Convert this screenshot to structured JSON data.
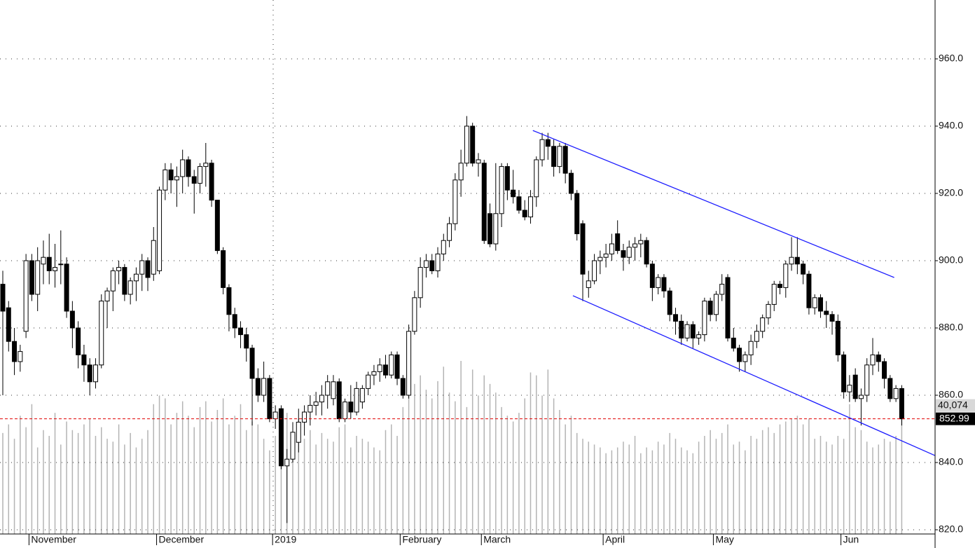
{
  "chart_data": {
    "type": "candlestick",
    "ylim": [
      818.75,
      977.5
    ],
    "yticks": [
      {
        "value": 820,
        "label": "820.0"
      },
      {
        "value": 840,
        "label": "840.0"
      },
      {
        "value": 860,
        "label": "860.0"
      },
      {
        "value": 880,
        "label": "880.0"
      },
      {
        "value": 900,
        "label": "900.0"
      },
      {
        "value": 920,
        "label": "920.0"
      },
      {
        "value": 940,
        "label": "940.0"
      },
      {
        "value": 960,
        "label": "960.0"
      }
    ],
    "grid": true,
    "up_color": "#ffffff",
    "down_color": "#000000",
    "categories": [
      null,
      null,
      null,
      null,
      null,
      "November",
      null,
      null,
      null,
      null,
      null,
      null,
      null,
      null,
      null,
      null,
      null,
      null,
      null,
      null,
      null,
      null,
      null,
      null,
      null,
      null,
      null,
      "December",
      null,
      null,
      null,
      null,
      null,
      null,
      null,
      null,
      null,
      null,
      null,
      null,
      null,
      null,
      null,
      null,
      null,
      null,
      null,
      "2019",
      null,
      null,
      null,
      null,
      null,
      null,
      null,
      null,
      null,
      null,
      null,
      null,
      null,
      null,
      null,
      null,
      null,
      null,
      null,
      null,
      null,
      "February",
      null,
      null,
      null,
      null,
      null,
      null,
      null,
      null,
      null,
      null,
      null,
      null,
      null,
      "March",
      null,
      null,
      null,
      null,
      null,
      null,
      null,
      null,
      null,
      null,
      null,
      null,
      null,
      null,
      null,
      null,
      null,
      null,
      null,
      null,
      "April",
      null,
      null,
      null,
      null,
      null,
      null,
      null,
      null,
      null,
      null,
      null,
      null,
      null,
      null,
      null,
      null,
      null,
      null,
      "May",
      null,
      null,
      null,
      null,
      null,
      null,
      null,
      null,
      null,
      null,
      null,
      null,
      null,
      null,
      null,
      null,
      null,
      null,
      null,
      null,
      null,
      "Jun",
      null,
      null,
      null,
      null,
      null,
      null,
      null,
      null,
      null,
      null
    ],
    "ohlc": [
      [
        893,
        897,
        860,
        885
      ],
      [
        886,
        888,
        873,
        876
      ],
      [
        876,
        880,
        866,
        870
      ],
      [
        870,
        875,
        867,
        873
      ],
      [
        879,
        902,
        877,
        900
      ],
      [
        900,
        902,
        888,
        890
      ],
      [
        890,
        904,
        885,
        900
      ],
      [
        899,
        906,
        893,
        901
      ],
      [
        901,
        908,
        893,
        897
      ],
      [
        897,
        905,
        892,
        898
      ],
      [
        899,
        909,
        893,
        899
      ],
      [
        899,
        901,
        883,
        885
      ],
      [
        885,
        888,
        874,
        880
      ],
      [
        880,
        882,
        868,
        872
      ],
      [
        872,
        875,
        864,
        869
      ],
      [
        869,
        871,
        860,
        864
      ],
      [
        864,
        871,
        862,
        869
      ],
      [
        869,
        890,
        868,
        888
      ],
      [
        888,
        892,
        880,
        891
      ],
      [
        891,
        898,
        885,
        897
      ],
      [
        897,
        900,
        893,
        898
      ],
      [
        898,
        899,
        888,
        890
      ],
      [
        890,
        895,
        887,
        894
      ],
      [
        894,
        898,
        888,
        896
      ],
      [
        896,
        902,
        891,
        900
      ],
      [
        900,
        901,
        891,
        895
      ],
      [
        896,
        910,
        894,
        906
      ],
      [
        897,
        922,
        896,
        921
      ],
      [
        921,
        929,
        918,
        927
      ],
      [
        927,
        929,
        920,
        924
      ],
      [
        924,
        928,
        916,
        925
      ],
      [
        925,
        933,
        920,
        930
      ],
      [
        930,
        931,
        922,
        925
      ],
      [
        925,
        927,
        914,
        923
      ],
      [
        923,
        929,
        920,
        928
      ],
      [
        928,
        935,
        922,
        929
      ],
      [
        929,
        930,
        916,
        918
      ],
      [
        918,
        918,
        902,
        903
      ],
      [
        903,
        904,
        890,
        892
      ],
      [
        892,
        893,
        879,
        884
      ],
      [
        884,
        886,
        877,
        880
      ],
      [
        880,
        882,
        874,
        878
      ],
      [
        878,
        880,
        870,
        874
      ],
      [
        874,
        875,
        851,
        865
      ],
      [
        865,
        868,
        858,
        860
      ],
      [
        860,
        870,
        858,
        865
      ],
      [
        865,
        866,
        852,
        853
      ],
      [
        853,
        857,
        850,
        855
      ],
      [
        856,
        857,
        838,
        839
      ],
      [
        839,
        844,
        822,
        841
      ],
      [
        841,
        852,
        840,
        849
      ],
      [
        846,
        856,
        843,
        852
      ],
      [
        852,
        857,
        848,
        855
      ],
      [
        855,
        860,
        851,
        857
      ],
      [
        857,
        861,
        854,
        858
      ],
      [
        858,
        863,
        854,
        860
      ],
      [
        860,
        866,
        856,
        864
      ],
      [
        859,
        866,
        857,
        864
      ],
      [
        864,
        865,
        852,
        853
      ],
      [
        853,
        859,
        852,
        858
      ],
      [
        858,
        863,
        853,
        855
      ],
      [
        855,
        864,
        854,
        862
      ],
      [
        858,
        863,
        856,
        862
      ],
      [
        862,
        867,
        860,
        866
      ],
      [
        866,
        869,
        863,
        867
      ],
      [
        867,
        871,
        864,
        869
      ],
      [
        869,
        872,
        865,
        866
      ],
      [
        866,
        873,
        865,
        872
      ],
      [
        872,
        873,
        863,
        865
      ],
      [
        865,
        866,
        859,
        860
      ],
      [
        860,
        881,
        859,
        879
      ],
      [
        879,
        891,
        878,
        889
      ],
      [
        889,
        901,
        886,
        898
      ],
      [
        898,
        902,
        895,
        900
      ],
      [
        900,
        902,
        896,
        897
      ],
      [
        897,
        904,
        895,
        902
      ],
      [
        902,
        908,
        900,
        906
      ],
      [
        906,
        913,
        904,
        911
      ],
      [
        911,
        926,
        909,
        924
      ],
      [
        924,
        933,
        919,
        929
      ],
      [
        929,
        943,
        928,
        940
      ],
      [
        940,
        941,
        928,
        929
      ],
      [
        929,
        932,
        925,
        930
      ],
      [
        929,
        930,
        905,
        906
      ],
      [
        914,
        917,
        904,
        905
      ],
      [
        905,
        929,
        903,
        914
      ],
      [
        914,
        929,
        910,
        928
      ],
      [
        928,
        929,
        918,
        921
      ],
      [
        921,
        927,
        917,
        919
      ],
      [
        919,
        921,
        914,
        915
      ],
      [
        915,
        918,
        912,
        913
      ],
      [
        913,
        921,
        911,
        919
      ],
      [
        919,
        931,
        916,
        930
      ],
      [
        930,
        938,
        928,
        936
      ],
      [
        936,
        938,
        930,
        934
      ],
      [
        934,
        936,
        925,
        928
      ],
      [
        928,
        935,
        926,
        934
      ],
      [
        934,
        935,
        923,
        926
      ],
      [
        926,
        927,
        918,
        920
      ],
      [
        920,
        921,
        906,
        908
      ],
      [
        911,
        912,
        888,
        896
      ],
      [
        892,
        897,
        889,
        894
      ],
      [
        894,
        902,
        893,
        900
      ],
      [
        900,
        903,
        896,
        901
      ],
      [
        901,
        905,
        898,
        902
      ],
      [
        902,
        908,
        900,
        905
      ],
      [
        908,
        912,
        902,
        903
      ],
      [
        903,
        905,
        897,
        901
      ],
      [
        901,
        906,
        899,
        904
      ],
      [
        904,
        907,
        900,
        905
      ],
      [
        905,
        908,
        901,
        906
      ],
      [
        906,
        907,
        898,
        899
      ],
      [
        899,
        900,
        888,
        892
      ],
      [
        892,
        896,
        890,
        895
      ],
      [
        895,
        896,
        889,
        891
      ],
      [
        891,
        892,
        882,
        884
      ],
      [
        884,
        886,
        878,
        882
      ],
      [
        882,
        884,
        875,
        877
      ],
      [
        877,
        882,
        876,
        881
      ],
      [
        881,
        882,
        874,
        877
      ],
      [
        877,
        879,
        875,
        878
      ],
      [
        878,
        889,
        876,
        888
      ],
      [
        888,
        889,
        882,
        884
      ],
      [
        884,
        891,
        882,
        890
      ],
      [
        890,
        896,
        888,
        893
      ],
      [
        895,
        896,
        876,
        877
      ],
      [
        877,
        880,
        873,
        874
      ],
      [
        874,
        875,
        867,
        870
      ],
      [
        870,
        873,
        867,
        872
      ],
      [
        872,
        878,
        869,
        876
      ],
      [
        876,
        881,
        874,
        879
      ],
      [
        879,
        884,
        877,
        883
      ],
      [
        883,
        888,
        881,
        887
      ],
      [
        887,
        894,
        885,
        893
      ],
      [
        893,
        894,
        890,
        892
      ],
      [
        892,
        900,
        889,
        899
      ],
      [
        899,
        907,
        897,
        901
      ],
      [
        901,
        907,
        896,
        899
      ],
      [
        899,
        900,
        893,
        896
      ],
      [
        896,
        897,
        884,
        886
      ],
      [
        886,
        890,
        884,
        889
      ],
      [
        889,
        890,
        883,
        885
      ],
      [
        885,
        888,
        880,
        884
      ],
      [
        884,
        885,
        878,
        882
      ],
      [
        882,
        884,
        870,
        872
      ],
      [
        872,
        873,
        859,
        861
      ],
      [
        861,
        866,
        858,
        863
      ],
      [
        866,
        868,
        858,
        859
      ],
      [
        859,
        862,
        851,
        860
      ],
      [
        860,
        871,
        858,
        869
      ],
      [
        869,
        877,
        866,
        872
      ],
      [
        872,
        873,
        867,
        870
      ],
      [
        870,
        871,
        862,
        865
      ],
      [
        865,
        866,
        858,
        859
      ],
      [
        859,
        863,
        858,
        862
      ],
      [
        862,
        863,
        851,
        852.99
      ]
    ],
    "last_price_color": "#e00000",
    "volume": {
      "color": "#b4b4b4",
      "values": [
        35000,
        38000,
        33000,
        41000,
        37000,
        45000,
        30000,
        36000,
        34000,
        42000,
        31000,
        39000,
        36000,
        35000,
        38000,
        40000,
        34000,
        37000,
        33000,
        32000,
        38000,
        31000,
        35000,
        30000,
        33000,
        36000,
        45000,
        48000,
        47000,
        38000,
        42000,
        46000,
        41000,
        37000,
        44000,
        46000,
        39000,
        43000,
        47000,
        38000,
        41000,
        45000,
        36000,
        39000,
        38000,
        33000,
        29000,
        34000,
        31000,
        42000,
        35000,
        40000,
        33000,
        36000,
        31000,
        35000,
        33000,
        32000,
        37000,
        38000,
        30000,
        34000,
        33000,
        32000,
        30000,
        29000,
        36000,
        38000,
        34000,
        44000,
        48000,
        52000,
        55000,
        50000,
        47000,
        53000,
        58000,
        49000,
        46000,
        60000,
        44000,
        57000,
        48000,
        55000,
        52000,
        49000,
        44000,
        41000,
        39000,
        42000,
        47000,
        56000,
        55000,
        48000,
        57000,
        47000,
        43000,
        38000,
        41000,
        35000,
        33000,
        32000,
        31000,
        30000,
        28000,
        29000,
        30000,
        32000,
        31000,
        34000,
        28000,
        30000,
        29000,
        32000,
        31000,
        35000,
        33000,
        30000,
        29000,
        28000,
        32000,
        34000,
        36000,
        33000,
        35000,
        38000,
        31000,
        32000,
        29000,
        34000,
        33000,
        36000,
        37000,
        35000,
        38000,
        39000,
        40000,
        41000,
        38000,
        40000,
        33000,
        34000,
        32000,
        31000,
        34000,
        33000,
        45000,
        37000,
        36000,
        32000,
        30000,
        31000,
        33000,
        32000,
        34000,
        40074
      ],
      "last_label": "40,074"
    },
    "trendlines": [
      {
        "color": "#1c1cff",
        "x": [
          91.4,
          153.7
        ],
        "y": [
          938.7,
          895
        ]
      },
      {
        "color": "#1c1cff",
        "x": [
          98.3,
          160.7
        ],
        "y": [
          889.6,
          842.1
        ]
      }
    ]
  }
}
